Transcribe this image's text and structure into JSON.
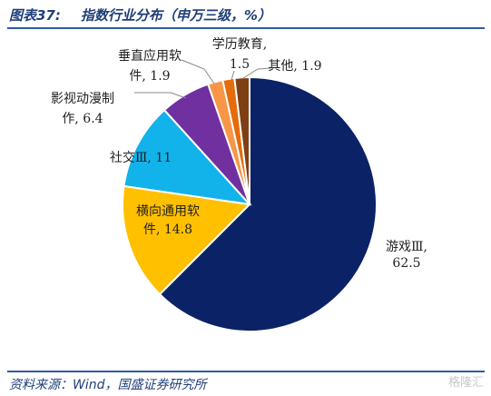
{
  "header": {
    "figure_no": "图表37:",
    "title": "指数行业分布（申万三级，%）"
  },
  "footer": {
    "source": "资料来源：Wind，国盛证券研究所",
    "watermark": "格隆汇"
  },
  "chart_data": {
    "type": "pie",
    "title": "指数行业分布（申万三级，%）",
    "unit": "%",
    "start_angle_deg": 0,
    "direction": "clockwise",
    "slices": [
      {
        "name": "游戏Ⅲ",
        "value": 62.5,
        "color": "#0b2266",
        "label_lines": [
          "游戏Ⅲ,",
          "62.5"
        ]
      },
      {
        "name": "横向通用软件",
        "value": 14.8,
        "color": "#ffc000",
        "label_lines": [
          "横向通用软",
          "件, 14.8"
        ]
      },
      {
        "name": "社交Ⅲ",
        "value": 11,
        "color": "#12b2ea",
        "label_lines": [
          "社交Ⅲ, 11"
        ]
      },
      {
        "name": "影视动漫制作",
        "value": 6.4,
        "color": "#7030a0",
        "label_lines": [
          "影视动漫制",
          "作, 6.4"
        ]
      },
      {
        "name": "垂直应用软件",
        "value": 1.9,
        "color": "#f79646",
        "label_lines": [
          "垂直应用软",
          "件, 1.9"
        ]
      },
      {
        "name": "学历教育",
        "value": 1.5,
        "color": "#e46c0a",
        "label_lines": [
          "学历教育,",
          "1.5"
        ]
      },
      {
        "name": "其他",
        "value": 1.9,
        "color": "#7f3f14",
        "label_lines": [
          "其他, 1.9"
        ]
      }
    ]
  }
}
